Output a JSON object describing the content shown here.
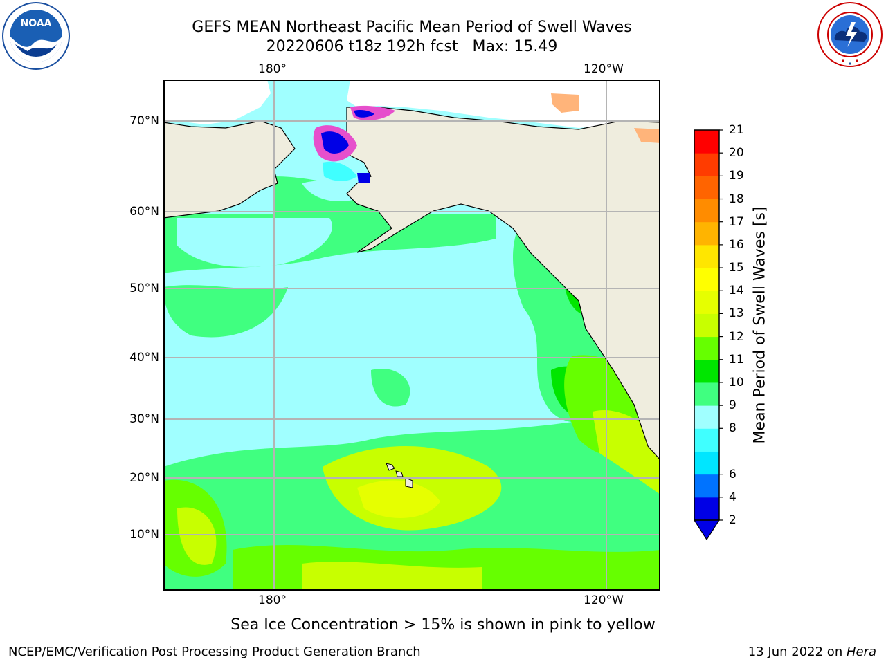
{
  "header": {
    "title_line1": "GEFS MEAN Northeast Pacific Mean Period of Swell Waves",
    "title_line2": "20220606 t18z 192h fcst   Max: 15.49"
  },
  "logos": {
    "noaa_text": "NOAA",
    "noaa_ring_text": "NATIONAL OCEANIC AND ATMOSPHERIC ADMINISTRATION",
    "nws_ring_text": "NATIONAL WEATHER SERVICE"
  },
  "map": {
    "lon_labels_top": [
      "180°",
      "120°W"
    ],
    "lon_labels_bottom": [
      "180°",
      "120°W"
    ],
    "lat_labels": [
      "70°N",
      "60°N",
      "50°N",
      "40°N",
      "30°N",
      "20°N",
      "10°N"
    ],
    "note": "Sea Ice Concentration > 15% is shown in pink to yellow"
  },
  "colorbar": {
    "label": "Mean Period of Swell Waves [s]",
    "ticks": [
      "2",
      "4",
      "6",
      "7",
      "8",
      "9",
      "10",
      "11",
      "12",
      "13",
      "14",
      "15",
      "16",
      "17",
      "18",
      "19",
      "20",
      "21"
    ],
    "tick_labels": [
      "2",
      "4",
      "6",
      "8",
      "9",
      "10",
      "11",
      "12",
      "13",
      "14",
      "15",
      "16",
      "17",
      "18",
      "19",
      "20",
      "21"
    ],
    "colors": [
      "#0000e6",
      "#0073ff",
      "#00e6ff",
      "#40ffff",
      "#a0ffff",
      "#40ff80",
      "#00e600",
      "#66ff00",
      "#c8ff00",
      "#e6ff00",
      "#ffff00",
      "#ffe600",
      "#ffb400",
      "#ff8c00",
      "#ff6400",
      "#ff3c00",
      "#ff0000"
    ],
    "under_color": "#0000e6"
  },
  "footer": {
    "left": "NCEP/EMC/Verification Post Processing Product Generation Branch",
    "right_date": "13 Jun 2022 on ",
    "right_machine": "Hera"
  }
}
